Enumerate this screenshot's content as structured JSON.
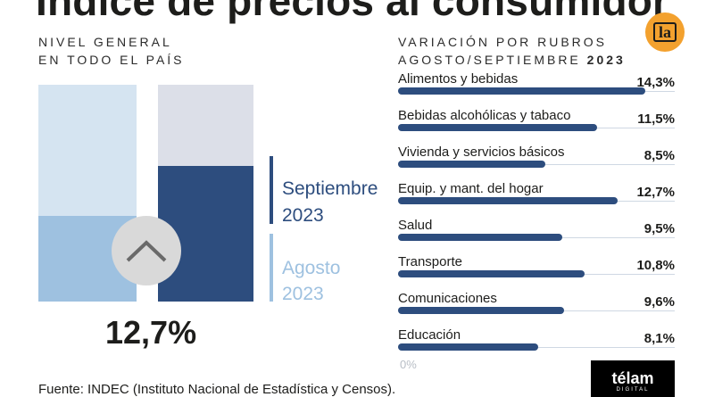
{
  "title": "Índice de precios al consumidor",
  "left_panel": {
    "label_line1": "NIVEL GENERAL",
    "label_line2": "EN TODO EL PAÍS",
    "value": "12,7%",
    "legend": [
      {
        "month": "Septiembre",
        "year": "2023",
        "color": "#2d4d7e"
      },
      {
        "month": "Agosto",
        "year": "2023",
        "color": "#9ec1e0"
      }
    ]
  },
  "right_panel": {
    "label_line1": "VARIACIÓN POR RUBROS",
    "label_line2": "AGOSTO/SEPTIEMBRE",
    "label_year": "2023",
    "zero_label": "0%"
  },
  "chart_data": {
    "type": "bar",
    "orientation": "horizontal",
    "xlim": [
      0,
      16
    ],
    "color": "#2d4d7e",
    "categories": [
      "Alimentos y bebidas",
      "Bebidas alcohólicas y tabaco",
      "Vivienda y servicios básicos",
      "Equip. y mant. del hogar",
      "Salud",
      "Transporte",
      "Comunicaciones",
      "Educación"
    ],
    "values": [
      14.3,
      11.5,
      8.5,
      12.7,
      9.5,
      10.8,
      9.6,
      8.1
    ],
    "value_labels": [
      "14,3%",
      "11,5%",
      "8,5%",
      "12,7%",
      "9,5%",
      "10,8%",
      "9,6%",
      "8,1%"
    ]
  },
  "footer": {
    "source": "Fuente: INDEC (Instituto Nacional de Estadística y Censos).",
    "brand_name": "télam",
    "brand_sub": "DIGITAL",
    "badge": "la"
  }
}
